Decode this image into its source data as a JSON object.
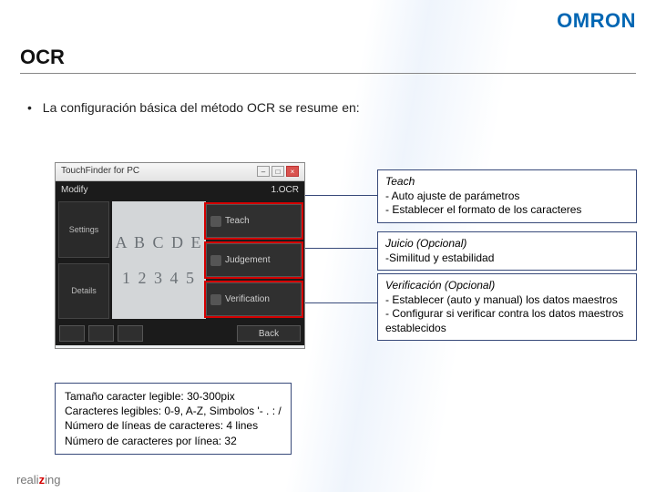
{
  "brand": "OMRON",
  "title": "OCR",
  "bullet": "La configuración básica del método OCR se resume en:",
  "screenshot": {
    "win_title": "TouchFinder for PC",
    "toprow_left": "Modify",
    "toprow_right": "1.OCR",
    "left_buttons": [
      "Settings",
      "Details"
    ],
    "sample_line1": "A B C D E",
    "sample_line2": "1 2 3 4 5",
    "right_buttons": [
      "Teach",
      "Judgement",
      "Verification"
    ],
    "back_label": "Back"
  },
  "callouts": {
    "teach": {
      "title": "Teach",
      "lines": [
        "- Auto ajuste de parámetros",
        "- Establecer el formato de los caracteres"
      ]
    },
    "judgement": {
      "title": "Juicio (Opcional)",
      "lines": [
        "-Similitud y estabilidad"
      ]
    },
    "verification": {
      "title": "Verificación (Opcional)",
      "lines": [
        "- Establecer (auto y manual) los datos maestros",
        "- Configurar si verificar contra los datos maestros establecidos"
      ]
    }
  },
  "specs": {
    "l1": "Tamaño caracter legible: 30-300pix",
    "l2": "Caracteres legibles: 0-9, A-Z, Simbolos '- . : /",
    "l3": "Número de líneas de caracteres: 4 lines",
    "l4": "Número de caracteres por línea: 32"
  },
  "footer": {
    "pre": "reali",
    "mid": "z",
    "post": "ing"
  },
  "colors": {
    "brand": "#0066b3",
    "box_border": "#384a7a",
    "highlight": "#d40000"
  }
}
